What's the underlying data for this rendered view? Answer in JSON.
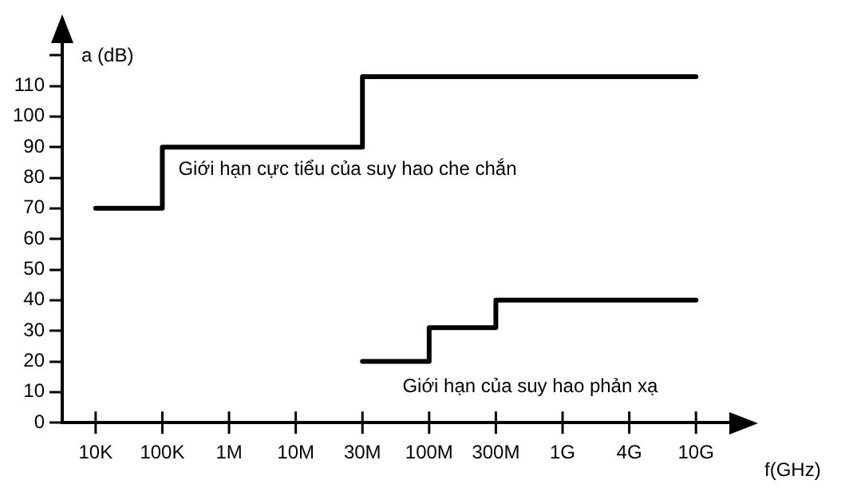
{
  "chart_data": {
    "type": "step",
    "xlabel": "f(GHz)",
    "ylabel": "a (dB)",
    "categories": [
      "10K",
      "100K",
      "1M",
      "10M",
      "30M",
      "100M",
      "300M",
      "1G",
      "4G",
      "10G"
    ],
    "series": [
      {
        "name": "Giới hạn cực tiểu của suy hao che chắn",
        "color": "#000000",
        "values": [
          70,
          90,
          90,
          90,
          113,
          113,
          113,
          113,
          113,
          113
        ]
      },
      {
        "name": "Giới hạn của suy hao phản xạ",
        "color": "#000000",
        "values": [
          null,
          null,
          null,
          null,
          20,
          31,
          40,
          40,
          40,
          40
        ]
      }
    ],
    "ylim": [
      0,
      125
    ],
    "yticks": [
      0,
      10,
      20,
      30,
      40,
      50,
      60,
      70,
      80,
      90,
      100,
      110,
      {
        "value": 120,
        "label": null
      }
    ],
    "grid": false,
    "legend": false
  }
}
